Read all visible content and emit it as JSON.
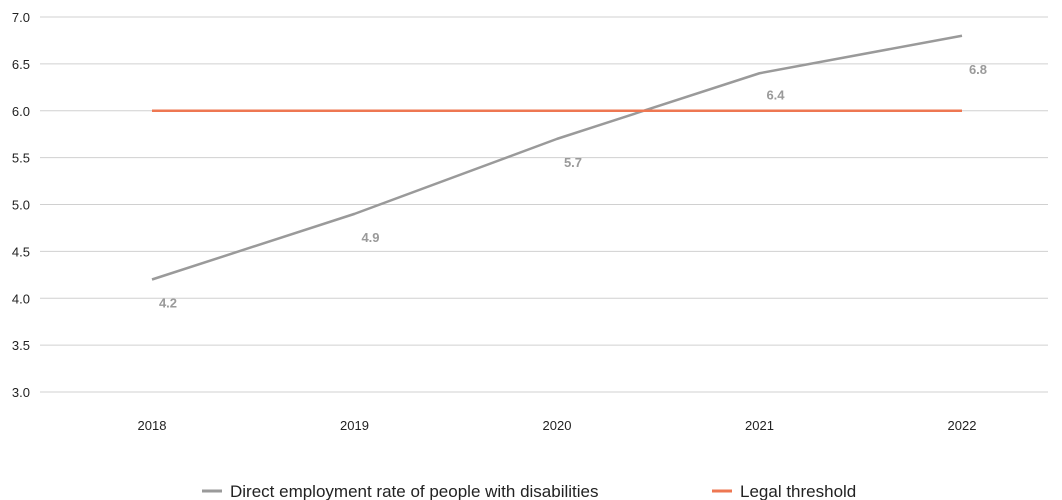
{
  "chart_data": {
    "type": "line",
    "title": "",
    "xlabel": "",
    "ylabel": "",
    "categories": [
      "2018",
      "2019",
      "2020",
      "2021",
      "2022"
    ],
    "ylim": [
      3.0,
      7.0
    ],
    "yticks": [
      "3.0",
      "3.5",
      "4.0",
      "4.5",
      "5.0",
      "5.5",
      "6.0",
      "6.5",
      "7.0"
    ],
    "grid": true,
    "legend_position": "bottom",
    "series": [
      {
        "name": "Direct employment rate of people with disabilities",
        "values": [
          4.2,
          4.9,
          5.7,
          6.4,
          6.8
        ],
        "labels": [
          "4.2",
          "4.9",
          "5.7",
          "6.4",
          "6.8"
        ],
        "color": "#9a9a9a"
      },
      {
        "name": "Legal threshold",
        "values": [
          6.0,
          6.0,
          6.0,
          6.0,
          6.0
        ],
        "color": "#ee7752"
      }
    ]
  }
}
